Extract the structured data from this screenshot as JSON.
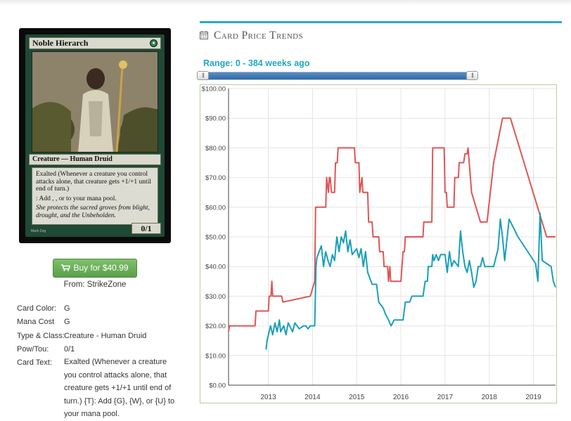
{
  "card": {
    "name": "Noble Hierarch",
    "type_line": "Creature — Human Druid",
    "rules_line1": "Exalted (Whenever a creature you control attacks alone, that creature gets +1/+1 until end of turn.)",
    "rules_line2": ": Add , , or  to your mana pool.",
    "flavor": "She protects the sacred groves from blight, drought, and the Unbeholden.",
    "pt": "0/1",
    "artist": "Mark Zug"
  },
  "buy": {
    "label": "Buy for $40.99",
    "from": "From: StrikeZone"
  },
  "details": {
    "color_label": "Card Color:",
    "color_value": "G",
    "mana_label": "Mana Cost",
    "mana_value": "G",
    "type_label": "Type & Class:",
    "type_value": "Creature - Human Druid",
    "pow_label": "Pow/Tou:",
    "pow_value": "0/1",
    "text_label": "Card Text:",
    "text_value": "Exalted (Whenever a creature you control attacks alone, that creature gets +1/+1 until end of turn.) {T}: Add {G}, {W}, or {U} to your mana pool."
  },
  "trends": {
    "header": "Card Price Trends",
    "range_label": "Range: 0 - 384 weeks ago",
    "slider_from": 0,
    "slider_to": 384
  },
  "icons": [
    "calendar-icon",
    "cart-icon",
    "slider-grip-icon"
  ],
  "colors": {
    "accent": "#22aec6",
    "buy_green": "#6fb25c",
    "series_red": "#e05555",
    "series_teal": "#1a9fb9"
  },
  "chart_data": {
    "type": "line",
    "xlim": [
      2012.1,
      2019.5
    ],
    "ylim": [
      0,
      100
    ],
    "x_ticks": [
      2013,
      2014,
      2015,
      2016,
      2017,
      2018,
      2019
    ],
    "y_ticks": [
      "$0.00",
      "$10.00",
      "$20.00",
      "$30.00",
      "$40.00",
      "$50.00",
      "$60.00",
      "$70.00",
      "$80.00",
      "$90.00",
      "$100.00"
    ],
    "grid": true,
    "series": [
      {
        "color": "#e05555",
        "points": [
          [
            2012.1,
            18
          ],
          [
            2012.12,
            20
          ],
          [
            2012.7,
            20
          ],
          [
            2012.72,
            25
          ],
          [
            2013.0,
            25
          ],
          [
            2013.02,
            30
          ],
          [
            2013.06,
            30
          ],
          [
            2013.08,
            35
          ],
          [
            2013.1,
            30
          ],
          [
            2013.3,
            30
          ],
          [
            2013.33,
            28
          ],
          [
            2013.95,
            30
          ],
          [
            2014.05,
            35
          ],
          [
            2014.07,
            60
          ],
          [
            2014.3,
            60
          ],
          [
            2014.32,
            70
          ],
          [
            2014.36,
            65
          ],
          [
            2014.38,
            70
          ],
          [
            2014.4,
            70
          ],
          [
            2014.43,
            65
          ],
          [
            2014.5,
            65
          ],
          [
            2014.52,
            75
          ],
          [
            2014.56,
            75
          ],
          [
            2014.58,
            80
          ],
          [
            2014.95,
            80
          ],
          [
            2014.97,
            75
          ],
          [
            2015.05,
            75
          ],
          [
            2015.07,
            65
          ],
          [
            2015.12,
            70
          ],
          [
            2015.14,
            65
          ],
          [
            2015.25,
            65
          ],
          [
            2015.27,
            55
          ],
          [
            2015.35,
            55
          ],
          [
            2015.37,
            50
          ],
          [
            2015.5,
            50
          ],
          [
            2015.52,
            45
          ],
          [
            2015.6,
            45
          ],
          [
            2015.62,
            40
          ],
          [
            2015.7,
            40
          ],
          [
            2015.72,
            35
          ],
          [
            2015.75,
            40
          ],
          [
            2015.77,
            35
          ],
          [
            2016.0,
            35
          ],
          [
            2016.05,
            45
          ],
          [
            2016.08,
            45
          ],
          [
            2016.1,
            50
          ],
          [
            2016.5,
            50
          ],
          [
            2016.52,
            55
          ],
          [
            2016.7,
            55
          ],
          [
            2016.72,
            80
          ],
          [
            2016.98,
            80
          ],
          [
            2017.0,
            65
          ],
          [
            2017.03,
            65
          ],
          [
            2017.05,
            60
          ],
          [
            2017.2,
            60
          ],
          [
            2017.22,
            70
          ],
          [
            2017.3,
            70
          ],
          [
            2017.32,
            75
          ],
          [
            2017.42,
            75
          ],
          [
            2017.45,
            78
          ],
          [
            2017.5,
            78
          ],
          [
            2017.52,
            80
          ],
          [
            2017.6,
            65
          ],
          [
            2017.7,
            60
          ],
          [
            2017.8,
            55
          ],
          [
            2017.95,
            55
          ],
          [
            2018.1,
            75
          ],
          [
            2018.3,
            90
          ],
          [
            2018.48,
            90
          ],
          [
            2019.3,
            50
          ],
          [
            2019.5,
            50
          ]
        ]
      },
      {
        "color": "#1a9fb9",
        "points": [
          [
            2012.95,
            12
          ],
          [
            2012.97,
            15
          ],
          [
            2013.05,
            20
          ],
          [
            2013.1,
            17
          ],
          [
            2013.15,
            21
          ],
          [
            2013.2,
            18
          ],
          [
            2013.25,
            22
          ],
          [
            2013.28,
            18
          ],
          [
            2013.35,
            20
          ],
          [
            2013.4,
            17
          ],
          [
            2013.45,
            21
          ],
          [
            2013.55,
            18
          ],
          [
            2013.6,
            21
          ],
          [
            2013.7,
            19
          ],
          [
            2013.8,
            20
          ],
          [
            2013.85,
            20
          ],
          [
            2013.9,
            19
          ],
          [
            2013.95,
            20
          ],
          [
            2014.0,
            20
          ],
          [
            2014.05,
            20
          ],
          [
            2014.08,
            40
          ],
          [
            2014.1,
            43
          ],
          [
            2014.15,
            45
          ],
          [
            2014.2,
            47
          ],
          [
            2014.25,
            40
          ],
          [
            2014.3,
            45
          ],
          [
            2014.35,
            42
          ],
          [
            2014.4,
            40
          ],
          [
            2014.45,
            44
          ],
          [
            2014.5,
            42
          ],
          [
            2014.55,
            50
          ],
          [
            2014.6,
            45
          ],
          [
            2014.65,
            50
          ],
          [
            2014.7,
            48
          ],
          [
            2014.75,
            52
          ],
          [
            2014.8,
            45
          ],
          [
            2014.85,
            49
          ],
          [
            2014.9,
            44
          ],
          [
            2015.0,
            46
          ],
          [
            2015.05,
            43
          ],
          [
            2015.1,
            46
          ],
          [
            2015.15,
            40
          ],
          [
            2015.2,
            45
          ],
          [
            2015.25,
            38
          ],
          [
            2015.3,
            36
          ],
          [
            2015.35,
            34
          ],
          [
            2015.45,
            34
          ],
          [
            2015.5,
            28
          ],
          [
            2015.55,
            27
          ],
          [
            2015.6,
            26
          ],
          [
            2015.65,
            24
          ],
          [
            2015.72,
            22
          ],
          [
            2015.78,
            20
          ],
          [
            2015.85,
            22
          ],
          [
            2015.95,
            22
          ],
          [
            2016.05,
            22
          ],
          [
            2016.1,
            28
          ],
          [
            2016.2,
            28
          ],
          [
            2016.25,
            30
          ],
          [
            2016.5,
            30
          ],
          [
            2016.55,
            35
          ],
          [
            2016.6,
            35
          ],
          [
            2016.62,
            40
          ],
          [
            2016.7,
            40
          ],
          [
            2016.72,
            44
          ],
          [
            2016.75,
            42
          ],
          [
            2016.8,
            44
          ],
          [
            2016.85,
            42
          ],
          [
            2016.9,
            44
          ],
          [
            2017.0,
            44
          ],
          [
            2017.05,
            38
          ],
          [
            2017.1,
            45
          ],
          [
            2017.15,
            40
          ],
          [
            2017.2,
            42
          ],
          [
            2017.3,
            40
          ],
          [
            2017.35,
            52
          ],
          [
            2017.4,
            45
          ],
          [
            2017.45,
            40
          ],
          [
            2017.5,
            38
          ],
          [
            2017.55,
            42
          ],
          [
            2017.6,
            38
          ],
          [
            2017.65,
            33
          ],
          [
            2017.7,
            35
          ],
          [
            2017.75,
            40
          ],
          [
            2017.8,
            40
          ],
          [
            2017.85,
            43
          ],
          [
            2017.9,
            40
          ],
          [
            2018.0,
            40
          ],
          [
            2018.1,
            40
          ],
          [
            2018.2,
            46
          ],
          [
            2018.25,
            56
          ],
          [
            2018.3,
            50
          ],
          [
            2018.35,
            42
          ],
          [
            2018.45,
            56
          ],
          [
            2018.65,
            50
          ],
          [
            2019.05,
            41
          ],
          [
            2019.1,
            35
          ],
          [
            2019.15,
            58
          ],
          [
            2019.2,
            42
          ],
          [
            2019.3,
            41
          ],
          [
            2019.4,
            40
          ],
          [
            2019.45,
            35
          ],
          [
            2019.5,
            33
          ]
        ]
      }
    ]
  }
}
